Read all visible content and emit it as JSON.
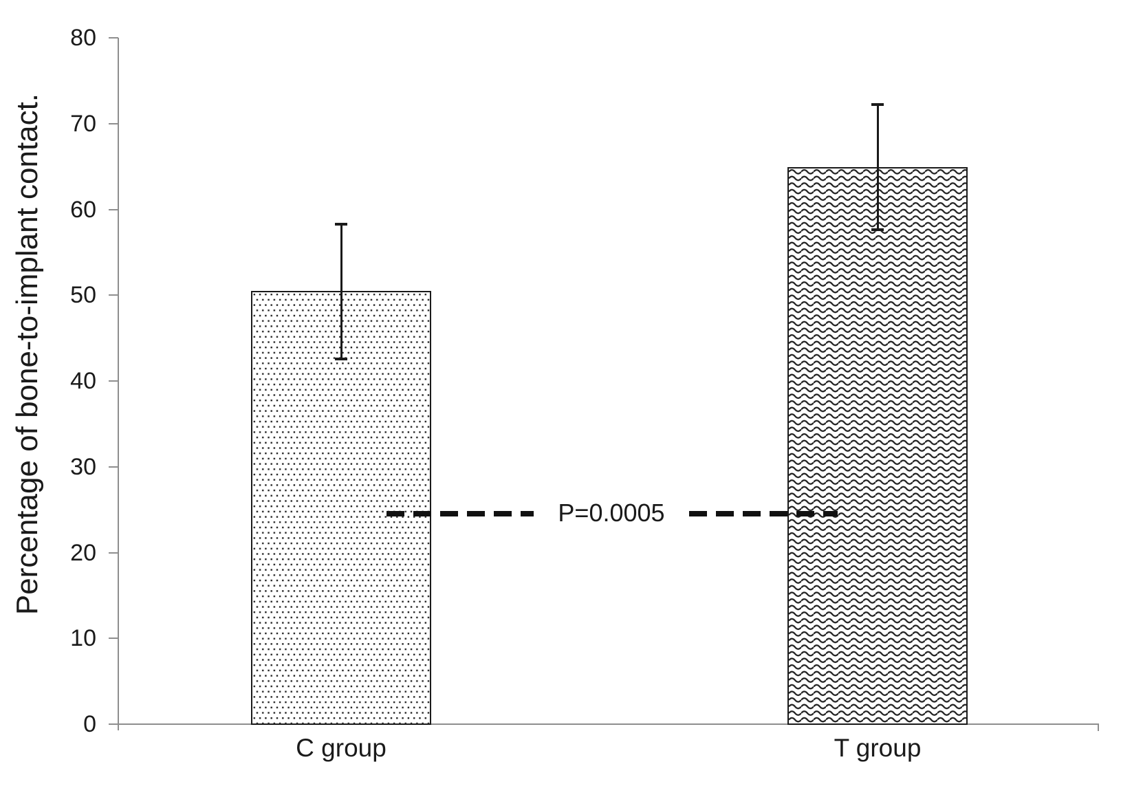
{
  "chart_data": {
    "type": "bar",
    "title": "",
    "xlabel": "",
    "ylabel": "Percentage of bone-to-implant contact.",
    "categories": [
      "C group",
      "T group"
    ],
    "values": [
      50.5,
      64.9
    ],
    "error_bars": {
      "upper": [
        58.3,
        72.2
      ],
      "lower": [
        42.6,
        57.6
      ]
    },
    "ylim": [
      0,
      80
    ],
    "yticks": [
      0,
      10,
      20,
      30,
      40,
      50,
      60,
      70,
      80
    ],
    "grid": false,
    "legend": "none",
    "bar_patterns": [
      "dotted",
      "wave"
    ],
    "bar_fill": "#ffffff",
    "annotation": {
      "text": "P=0.0005",
      "y": 24.5
    },
    "colors": {
      "axis": "#8e8e8e",
      "text": "#1a1a1a",
      "bar_border": "#1a1a1a",
      "pattern_ink": "#222222",
      "error_bar": "#1a1a1a",
      "dashed_line": "#111111",
      "background": "#ffffff"
    }
  }
}
